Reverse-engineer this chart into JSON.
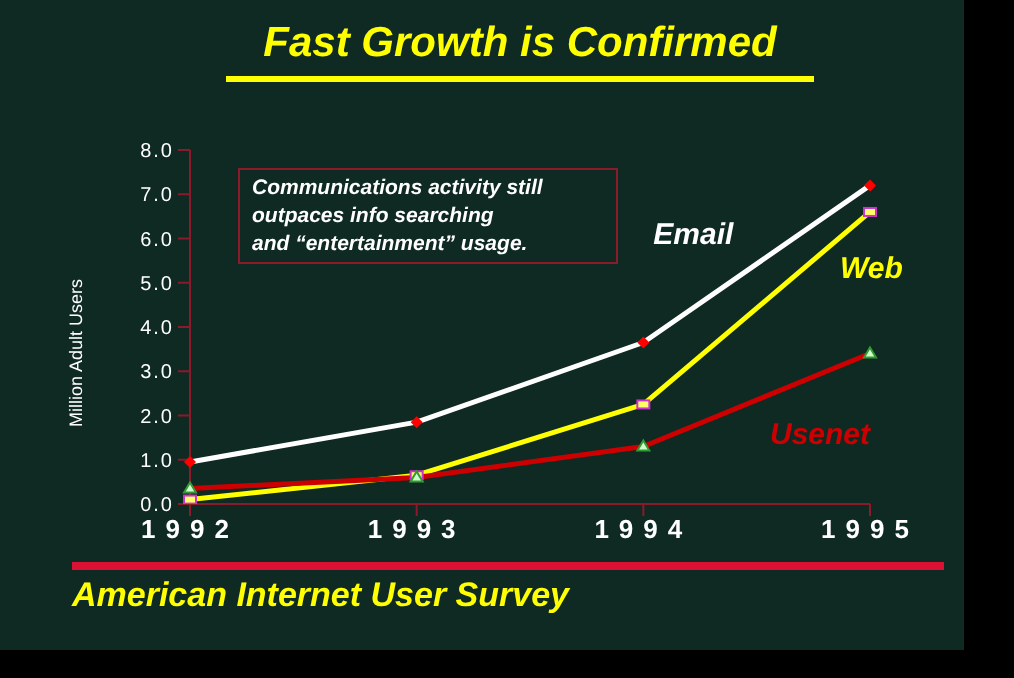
{
  "chart_data": {
    "type": "line",
    "title": "Fast Growth is Confirmed",
    "ylabel": "Million Adult Users",
    "categories": [
      "1992",
      "1993",
      "1994",
      "1995"
    ],
    "series": [
      {
        "name": "Email",
        "color": "#ffffff",
        "marker": "diamond",
        "values": [
          0.95,
          1.85,
          3.65,
          7.2
        ]
      },
      {
        "name": "Web",
        "color": "#ffff00",
        "marker": "square",
        "values": [
          0.1,
          0.65,
          2.25,
          6.6
        ]
      },
      {
        "name": "Usenet",
        "color": "#cc0000",
        "marker": "triangle",
        "values": [
          0.35,
          0.6,
          1.3,
          3.4
        ]
      }
    ],
    "ylim": [
      0,
      8
    ],
    "yticks": [
      {
        "value": 0,
        "label": "0.0"
      },
      {
        "value": 1,
        "label": "1.0"
      },
      {
        "value": 2,
        "label": "2.0"
      },
      {
        "value": 3,
        "label": "3.0"
      },
      {
        "value": 4,
        "label": "4.0"
      },
      {
        "value": 5,
        "label": "5.0"
      },
      {
        "value": 6,
        "label": "6.0"
      },
      {
        "value": 7,
        "label": "7.0"
      },
      {
        "value": 8,
        "label": "8.0"
      }
    ],
    "grid": false,
    "legend": false,
    "annotations": [
      "Communications activity still\noutpaces info searching\nand “entertainment” usage.",
      "American Internet User Survey"
    ]
  }
}
